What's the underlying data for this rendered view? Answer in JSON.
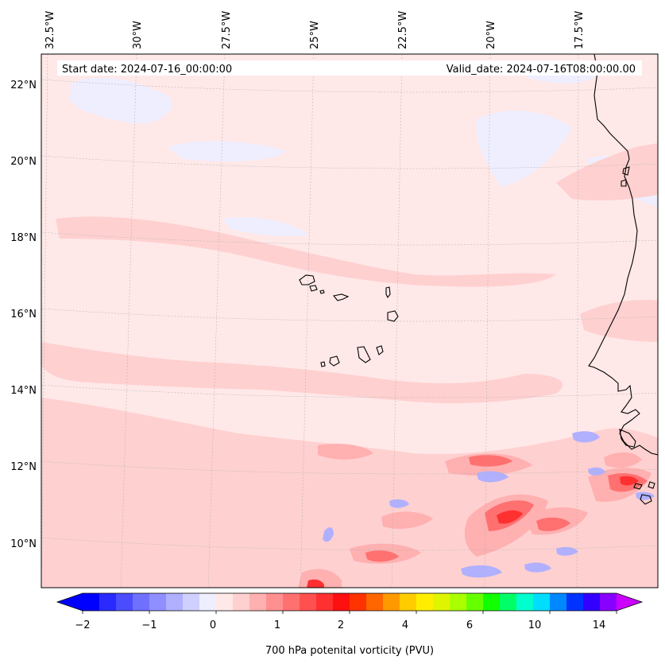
{
  "map": {
    "start_label": "Start date: 2024-07-16_00:00:00",
    "valid_label": "Valid_date: 2024-07-16T08:00:00.00",
    "lon_labels": [
      "32.5°W",
      "30°W",
      "27.5°W",
      "25°W",
      "22.5°W",
      "20°W",
      "17.5°W"
    ],
    "lat_labels": [
      "22°N",
      "20°N",
      "18°N",
      "16°N",
      "14°N",
      "12°N",
      "10°N"
    ],
    "colorbar": {
      "title": "700 hPa potenital vorticity (PVU)",
      "tick_labels": [
        "−2",
        "−1",
        "0",
        "1",
        "2",
        "4",
        "6",
        "10",
        "14"
      ],
      "colors": [
        "#0000ff",
        "#2a2aff",
        "#4c4cff",
        "#7070ff",
        "#8f8fff",
        "#b0b0ff",
        "#d0d0ff",
        "#eeeeff",
        "#ffe8e8",
        "#ffd0d0",
        "#ffb0b0",
        "#ff9090",
        "#ff7070",
        "#ff5050",
        "#ff3030",
        "#ff1010",
        "#ff3300",
        "#ff6600",
        "#ff9900",
        "#ffcc00",
        "#ffee00",
        "#dff500",
        "#aaff00",
        "#66ff00",
        "#11ff00",
        "#00ff66",
        "#00ffcc",
        "#00ddff",
        "#0088ff",
        "#0033ff",
        "#3300ff",
        "#8800ff"
      ],
      "under_color": "#0000ff",
      "over_color": "#cc00ff"
    },
    "colors": {
      "background": "#ffe8e8",
      "light_red": "#ffd0d0",
      "mid_red": "#ffb0b0",
      "red": "#ff7070",
      "strong_red": "#ff3030",
      "light_blue": "#eeeeff",
      "blue": "#b0b0ff",
      "coast": "#000000"
    }
  }
}
